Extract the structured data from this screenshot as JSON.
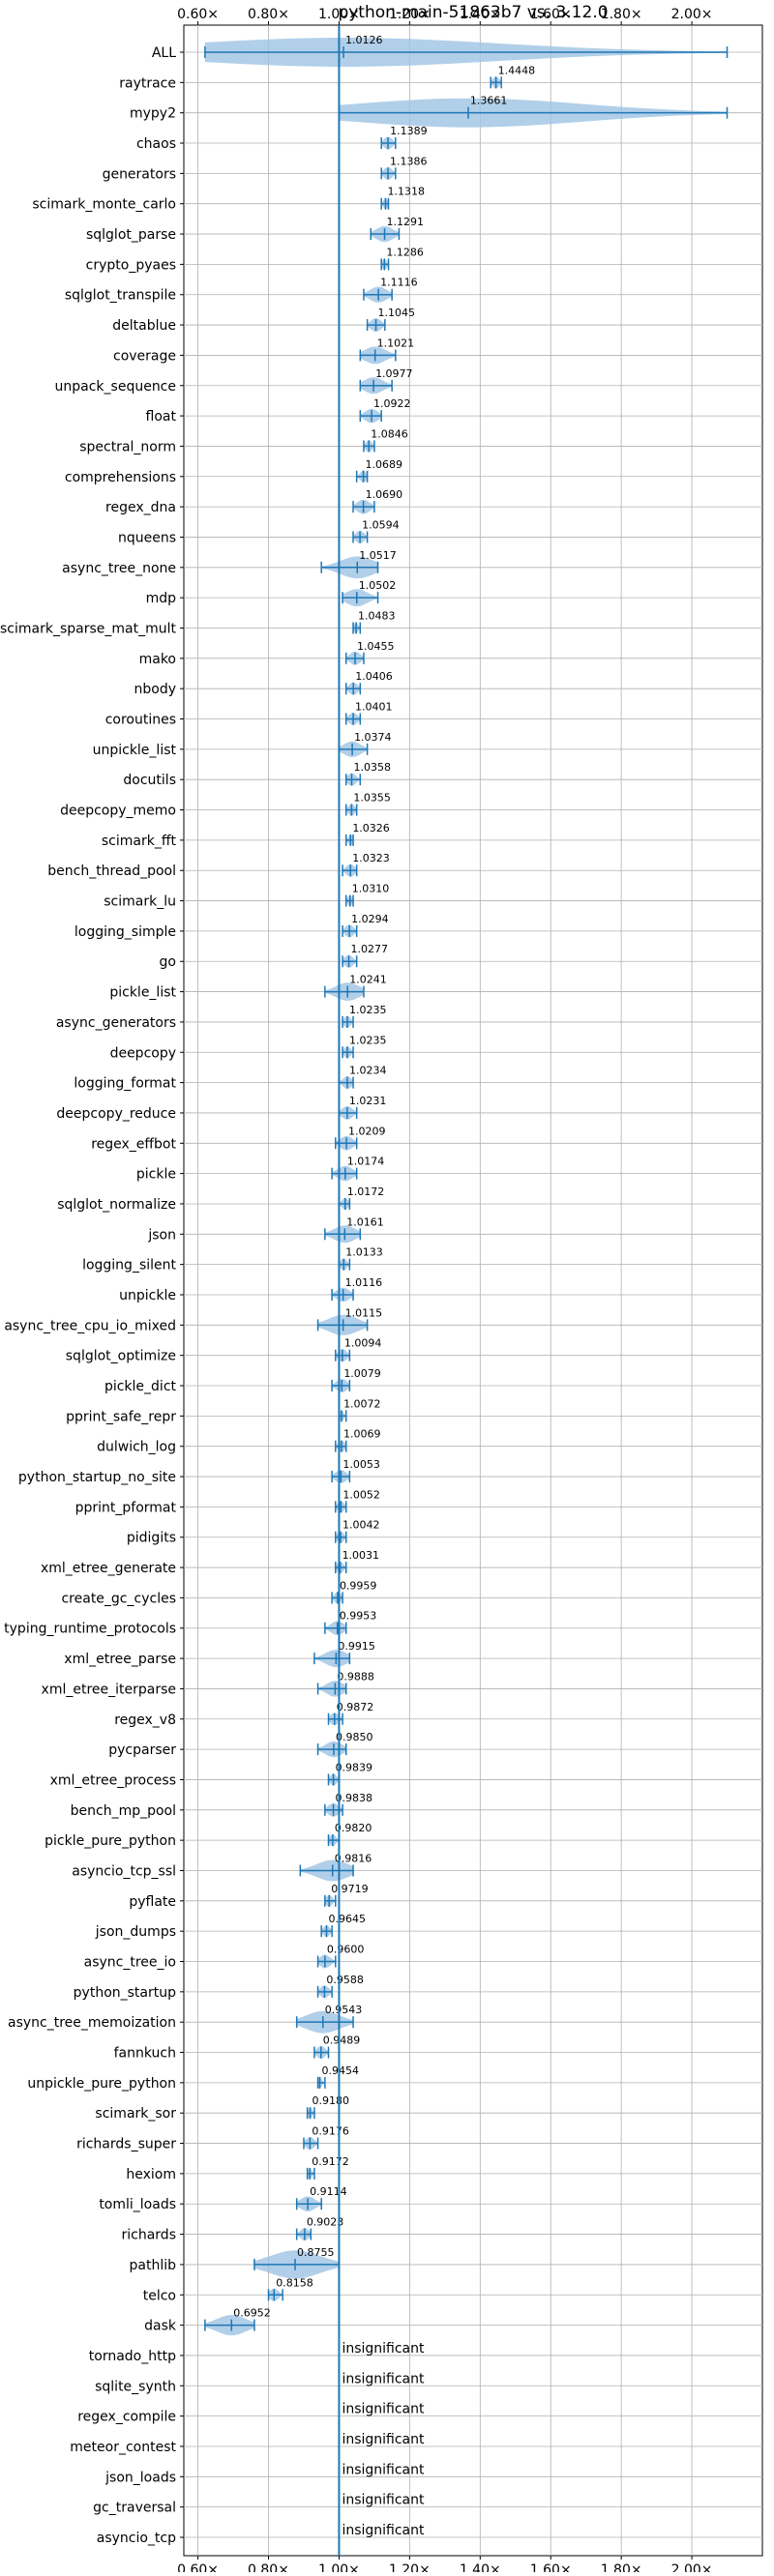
{
  "chart_data": {
    "type": "violin",
    "title": "python-main-51863b7 vs. 3.12.0",
    "x_range": [
      0.56,
      2.2
    ],
    "x_scale": "linear",
    "x_ticks": [
      0.6,
      0.8,
      1.0,
      1.2,
      1.4,
      1.6,
      1.8,
      2.0
    ],
    "x_tick_labels": [
      "0.60×",
      "0.80×",
      "1.00×",
      "1.20×",
      "1.40×",
      "1.60×",
      "1.80×",
      "2.00×"
    ],
    "reference_line": 1.0,
    "grid": true,
    "colors": {
      "accent": "#1f77b4",
      "violin": "#9ec3e3"
    },
    "benchmarks": [
      {
        "name": "ALL",
        "value": 1.0126,
        "min": 0.62,
        "max": 2.1,
        "label": "1.0126"
      },
      {
        "name": "raytrace",
        "value": 1.4448,
        "min": 1.43,
        "max": 1.46,
        "label": "1.4448"
      },
      {
        "name": "mypy2",
        "value": 1.3661,
        "min": 1.0,
        "max": 2.1,
        "label": "1.3661"
      },
      {
        "name": "chaos",
        "value": 1.1389,
        "min": 1.12,
        "max": 1.16,
        "label": "1.1389"
      },
      {
        "name": "generators",
        "value": 1.1386,
        "min": 1.12,
        "max": 1.16,
        "label": "1.1386"
      },
      {
        "name": "scimark_monte_carlo",
        "value": 1.1318,
        "min": 1.12,
        "max": 1.14,
        "label": "1.1318"
      },
      {
        "name": "sqlglot_parse",
        "value": 1.1291,
        "min": 1.09,
        "max": 1.17,
        "label": "1.1291"
      },
      {
        "name": "crypto_pyaes",
        "value": 1.1286,
        "min": 1.12,
        "max": 1.14,
        "label": "1.1286"
      },
      {
        "name": "sqlglot_transpile",
        "value": 1.1116,
        "min": 1.07,
        "max": 1.15,
        "label": "1.1116"
      },
      {
        "name": "deltablue",
        "value": 1.1045,
        "min": 1.08,
        "max": 1.13,
        "label": "1.1045"
      },
      {
        "name": "coverage",
        "value": 1.1021,
        "min": 1.06,
        "max": 1.16,
        "label": "1.1021"
      },
      {
        "name": "unpack_sequence",
        "value": 1.0977,
        "min": 1.06,
        "max": 1.15,
        "label": "1.0977"
      },
      {
        "name": "float",
        "value": 1.0922,
        "min": 1.06,
        "max": 1.12,
        "label": "1.0922"
      },
      {
        "name": "spectral_norm",
        "value": 1.0846,
        "min": 1.07,
        "max": 1.1,
        "label": "1.0846"
      },
      {
        "name": "comprehensions",
        "value": 1.0689,
        "min": 1.05,
        "max": 1.08,
        "label": "1.0689"
      },
      {
        "name": "regex_dna",
        "value": 1.069,
        "min": 1.04,
        "max": 1.1,
        "label": "1.0690"
      },
      {
        "name": "nqueens",
        "value": 1.0594,
        "min": 1.04,
        "max": 1.08,
        "label": "1.0594"
      },
      {
        "name": "async_tree_none",
        "value": 1.0517,
        "min": 0.95,
        "max": 1.11,
        "label": "1.0517"
      },
      {
        "name": "mdp",
        "value": 1.0502,
        "min": 1.01,
        "max": 1.11,
        "label": "1.0502"
      },
      {
        "name": "scimark_sparse_mat_mult",
        "value": 1.0483,
        "min": 1.04,
        "max": 1.06,
        "label": "1.0483"
      },
      {
        "name": "mako",
        "value": 1.0455,
        "min": 1.02,
        "max": 1.07,
        "label": "1.0455"
      },
      {
        "name": "nbody",
        "value": 1.0406,
        "min": 1.02,
        "max": 1.06,
        "label": "1.0406"
      },
      {
        "name": "coroutines",
        "value": 1.0401,
        "min": 1.02,
        "max": 1.06,
        "label": "1.0401"
      },
      {
        "name": "unpickle_list",
        "value": 1.0374,
        "min": 1.0,
        "max": 1.08,
        "label": "1.0374"
      },
      {
        "name": "docutils",
        "value": 1.0358,
        "min": 1.02,
        "max": 1.06,
        "label": "1.0358"
      },
      {
        "name": "deepcopy_memo",
        "value": 1.0355,
        "min": 1.02,
        "max": 1.05,
        "label": "1.0355"
      },
      {
        "name": "scimark_fft",
        "value": 1.0326,
        "min": 1.02,
        "max": 1.04,
        "label": "1.0326"
      },
      {
        "name": "bench_thread_pool",
        "value": 1.0323,
        "min": 1.01,
        "max": 1.05,
        "label": "1.0323"
      },
      {
        "name": "scimark_lu",
        "value": 1.031,
        "min": 1.02,
        "max": 1.04,
        "label": "1.0310"
      },
      {
        "name": "logging_simple",
        "value": 1.0294,
        "min": 1.01,
        "max": 1.05,
        "label": "1.0294"
      },
      {
        "name": "go",
        "value": 1.0277,
        "min": 1.01,
        "max": 1.05,
        "label": "1.0277"
      },
      {
        "name": "pickle_list",
        "value": 1.0241,
        "min": 0.96,
        "max": 1.07,
        "label": "1.0241"
      },
      {
        "name": "async_generators",
        "value": 1.0235,
        "min": 1.01,
        "max": 1.04,
        "label": "1.0235"
      },
      {
        "name": "deepcopy",
        "value": 1.0235,
        "min": 1.01,
        "max": 1.04,
        "label": "1.0235"
      },
      {
        "name": "logging_format",
        "value": 1.0234,
        "min": 1.0,
        "max": 1.04,
        "label": "1.0234"
      },
      {
        "name": "deepcopy_reduce",
        "value": 1.0231,
        "min": 1.0,
        "max": 1.05,
        "label": "1.0231"
      },
      {
        "name": "regex_effbot",
        "value": 1.0209,
        "min": 0.99,
        "max": 1.05,
        "label": "1.0209"
      },
      {
        "name": "pickle",
        "value": 1.0174,
        "min": 0.98,
        "max": 1.05,
        "label": "1.0174"
      },
      {
        "name": "sqlglot_normalize",
        "value": 1.0172,
        "min": 1.0,
        "max": 1.03,
        "label": "1.0172"
      },
      {
        "name": "json",
        "value": 1.0161,
        "min": 0.96,
        "max": 1.06,
        "label": "1.0161"
      },
      {
        "name": "logging_silent",
        "value": 1.0133,
        "min": 1.0,
        "max": 1.03,
        "label": "1.0133"
      },
      {
        "name": "unpickle",
        "value": 1.0116,
        "min": 0.98,
        "max": 1.04,
        "label": "1.0116"
      },
      {
        "name": "async_tree_cpu_io_mixed",
        "value": 1.0115,
        "min": 0.94,
        "max": 1.08,
        "label": "1.0115"
      },
      {
        "name": "sqlglot_optimize",
        "value": 1.0094,
        "min": 0.99,
        "max": 1.03,
        "label": "1.0094"
      },
      {
        "name": "pickle_dict",
        "value": 1.0079,
        "min": 0.98,
        "max": 1.03,
        "label": "1.0079"
      },
      {
        "name": "pprint_safe_repr",
        "value": 1.0072,
        "min": 1.0,
        "max": 1.02,
        "label": "1.0072"
      },
      {
        "name": "dulwich_log",
        "value": 1.0069,
        "min": 0.99,
        "max": 1.02,
        "label": "1.0069"
      },
      {
        "name": "python_startup_no_site",
        "value": 1.0053,
        "min": 0.98,
        "max": 1.03,
        "label": "1.0053"
      },
      {
        "name": "pprint_pformat",
        "value": 1.0052,
        "min": 0.99,
        "max": 1.02,
        "label": "1.0052"
      },
      {
        "name": "pidigits",
        "value": 1.0042,
        "min": 0.99,
        "max": 1.02,
        "label": "1.0042"
      },
      {
        "name": "xml_etree_generate",
        "value": 1.0031,
        "min": 0.99,
        "max": 1.02,
        "label": "1.0031"
      },
      {
        "name": "create_gc_cycles",
        "value": 0.9959,
        "min": 0.98,
        "max": 1.01,
        "label": "0.9959"
      },
      {
        "name": "typing_runtime_protocols",
        "value": 0.9953,
        "min": 0.96,
        "max": 1.02,
        "label": "0.9953"
      },
      {
        "name": "xml_etree_parse",
        "value": 0.9915,
        "min": 0.93,
        "max": 1.03,
        "label": "0.9915"
      },
      {
        "name": "xml_etree_iterparse",
        "value": 0.9888,
        "min": 0.94,
        "max": 1.02,
        "label": "0.9888"
      },
      {
        "name": "regex_v8",
        "value": 0.9872,
        "min": 0.97,
        "max": 1.01,
        "label": "0.9872"
      },
      {
        "name": "pycparser",
        "value": 0.985,
        "min": 0.94,
        "max": 1.02,
        "label": "0.9850"
      },
      {
        "name": "xml_etree_process",
        "value": 0.9839,
        "min": 0.97,
        "max": 1.0,
        "label": "0.9839"
      },
      {
        "name": "bench_mp_pool",
        "value": 0.9838,
        "min": 0.96,
        "max": 1.01,
        "label": "0.9838"
      },
      {
        "name": "pickle_pure_python",
        "value": 0.982,
        "min": 0.97,
        "max": 1.0,
        "label": "0.9820"
      },
      {
        "name": "asyncio_tcp_ssl",
        "value": 0.9816,
        "min": 0.89,
        "max": 1.04,
        "label": "0.9816"
      },
      {
        "name": "pyflate",
        "value": 0.9719,
        "min": 0.96,
        "max": 0.99,
        "label": "0.9719"
      },
      {
        "name": "json_dumps",
        "value": 0.9645,
        "min": 0.95,
        "max": 0.98,
        "label": "0.9645"
      },
      {
        "name": "async_tree_io",
        "value": 0.96,
        "min": 0.94,
        "max": 0.99,
        "label": "0.9600"
      },
      {
        "name": "python_startup",
        "value": 0.9588,
        "min": 0.94,
        "max": 0.98,
        "label": "0.9588"
      },
      {
        "name": "async_tree_memoization",
        "value": 0.9543,
        "min": 0.88,
        "max": 1.04,
        "label": "0.9543"
      },
      {
        "name": "fannkuch",
        "value": 0.9489,
        "min": 0.93,
        "max": 0.97,
        "label": "0.9489"
      },
      {
        "name": "unpickle_pure_python",
        "value": 0.9454,
        "min": 0.94,
        "max": 0.96,
        "label": "0.9454"
      },
      {
        "name": "scimark_sor",
        "value": 0.918,
        "min": 0.91,
        "max": 0.93,
        "label": "0.9180"
      },
      {
        "name": "richards_super",
        "value": 0.9176,
        "min": 0.9,
        "max": 0.94,
        "label": "0.9176"
      },
      {
        "name": "hexiom",
        "value": 0.9172,
        "min": 0.91,
        "max": 0.93,
        "label": "0.9172"
      },
      {
        "name": "tomli_loads",
        "value": 0.9114,
        "min": 0.88,
        "max": 0.95,
        "label": "0.9114"
      },
      {
        "name": "richards",
        "value": 0.9023,
        "min": 0.88,
        "max": 0.92,
        "label": "0.9023"
      },
      {
        "name": "pathlib",
        "value": 0.8755,
        "min": 0.76,
        "max": 1.0,
        "label": "0.8755"
      },
      {
        "name": "telco",
        "value": 0.8158,
        "min": 0.8,
        "max": 0.84,
        "label": "0.8158"
      },
      {
        "name": "dask",
        "value": 0.6952,
        "min": 0.62,
        "max": 0.76,
        "label": "0.6952"
      },
      {
        "name": "tornado_http",
        "value": null,
        "label": "insignificant"
      },
      {
        "name": "sqlite_synth",
        "value": null,
        "label": "insignificant"
      },
      {
        "name": "regex_compile",
        "value": null,
        "label": "insignificant"
      },
      {
        "name": "meteor_contest",
        "value": null,
        "label": "insignificant"
      },
      {
        "name": "json_loads",
        "value": null,
        "label": "insignificant"
      },
      {
        "name": "gc_traversal",
        "value": null,
        "label": "insignificant"
      },
      {
        "name": "asyncio_tcp",
        "value": null,
        "label": "insignificant"
      }
    ]
  }
}
